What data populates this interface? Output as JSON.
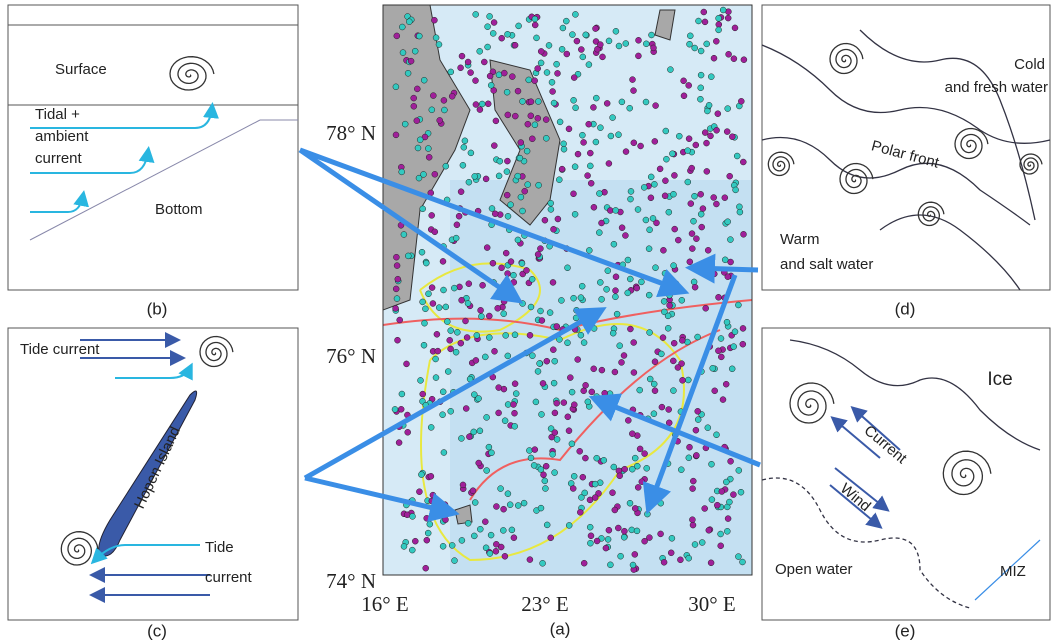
{
  "panel_labels": {
    "a": "(a)",
    "b": "(b)",
    "c": "(c)",
    "d": "(d)",
    "e": "(e)"
  },
  "map": {
    "lat_labels": [
      "78° N",
      "76° N",
      "74° N"
    ],
    "lon_labels": [
      "16° E",
      "23° E",
      "30° E"
    ]
  },
  "panel_b": {
    "surface": "Surface",
    "current": [
      "Tidal +",
      "ambient",
      "current"
    ],
    "bottom": "Bottom"
  },
  "panel_c": {
    "tide_current_top": "Tide current",
    "island": "Hopen Island",
    "tide_current_bottom": [
      "Tide",
      "current"
    ]
  },
  "panel_d": {
    "cold": [
      "Cold",
      "and fresh water"
    ],
    "front": "Polar front",
    "warm": [
      "Warm",
      "and salt water"
    ]
  },
  "panel_e": {
    "ice": "Ice",
    "current": "Current",
    "wind": "Wind",
    "open_water": "Open water",
    "miz": "MIZ"
  }
}
